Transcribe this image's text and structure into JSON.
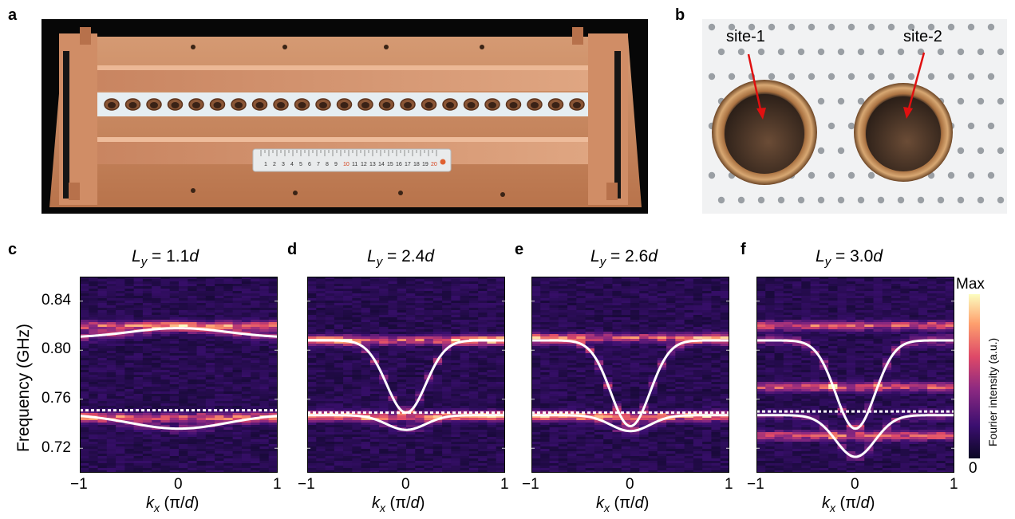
{
  "panels": {
    "a": "a",
    "b": "b",
    "c": "c",
    "d": "d",
    "e": "e",
    "f": "f"
  },
  "photo_b": {
    "site1": "site-1",
    "site2": "site-2"
  },
  "photo_a": {
    "ruler_numbers": [
      "1",
      "2",
      "3",
      "4",
      "5",
      "6",
      "7",
      "8",
      "9",
      "10",
      "11",
      "12",
      "13",
      "14",
      "15",
      "16",
      "17",
      "18",
      "19",
      "20"
    ],
    "colors": {
      "copper": "#c98a62",
      "foam": "#e6eef2",
      "frame": "#1c1c1c"
    }
  },
  "y_axis": {
    "label": "Frequency (GHz)",
    "ticks": [
      "0.84",
      "0.80",
      "0.76",
      "0.72"
    ]
  },
  "x_axis": {
    "ticks": [
      "−1",
      "0",
      "1"
    ],
    "label_var": "k",
    "label_sub": "x",
    "label_unit": " (π/",
    "label_d": "d",
    "label_close": ")"
  },
  "colorbar": {
    "max": "Max",
    "min": "0",
    "label": "Fourier intensity (a.u.)",
    "colors": [
      "#0b0724",
      "#3b0f70",
      "#8c2981",
      "#de4968",
      "#fe9f6d",
      "#fcfdbf"
    ]
  },
  "chart_data": [
    {
      "type": "heatmap",
      "panel": "c",
      "title_var": "L",
      "title_sub": "y",
      "title_eq": " = 1.1",
      "title_d": "d",
      "xlim": [
        -1,
        1
      ],
      "ylim": [
        0.7,
        0.86
      ],
      "upper_band": {
        "edge": 0.81,
        "center": 0.818
      },
      "lower_band": {
        "edge": 0.748,
        "center": 0.736
      },
      "dotted_line": 0.751,
      "bright_rows": [
        0.82,
        0.745
      ]
    },
    {
      "type": "heatmap",
      "panel": "d",
      "title_var": "L",
      "title_sub": "y",
      "title_eq": " = 2.4",
      "title_d": "d",
      "xlim": [
        -1,
        1
      ],
      "ylim": [
        0.7,
        0.86
      ],
      "upper_band": {
        "edge": 0.808,
        "center": 0.749
      },
      "lower_band": {
        "edge": 0.747,
        "center": 0.735
      },
      "dotted_line": 0.749,
      "bright_rows": [
        0.808,
        0.746
      ]
    },
    {
      "type": "heatmap",
      "panel": "e",
      "title_var": "L",
      "title_sub": "y",
      "title_eq": " = 2.6",
      "title_d": "d",
      "xlim": [
        -1,
        1
      ],
      "ylim": [
        0.7,
        0.86
      ],
      "upper_band": {
        "edge": 0.808,
        "center": 0.738
      },
      "lower_band": {
        "edge": 0.747,
        "center": 0.734
      },
      "dotted_line": 0.749,
      "bright_rows": [
        0.81,
        0.746
      ]
    },
    {
      "type": "heatmap",
      "panel": "f",
      "title_var": "L",
      "title_sub": "y",
      "title_eq": " = 3.0",
      "title_d": "d",
      "xlim": [
        -1,
        1
      ],
      "ylim": [
        0.7,
        0.86
      ],
      "upper_band": {
        "edge": 0.808,
        "center": 0.736
      },
      "lower_band": {
        "edge": 0.747,
        "center": 0.713
      },
      "dotted_line": 0.75,
      "bright_rows": [
        0.82,
        0.77,
        0.73
      ]
    }
  ]
}
